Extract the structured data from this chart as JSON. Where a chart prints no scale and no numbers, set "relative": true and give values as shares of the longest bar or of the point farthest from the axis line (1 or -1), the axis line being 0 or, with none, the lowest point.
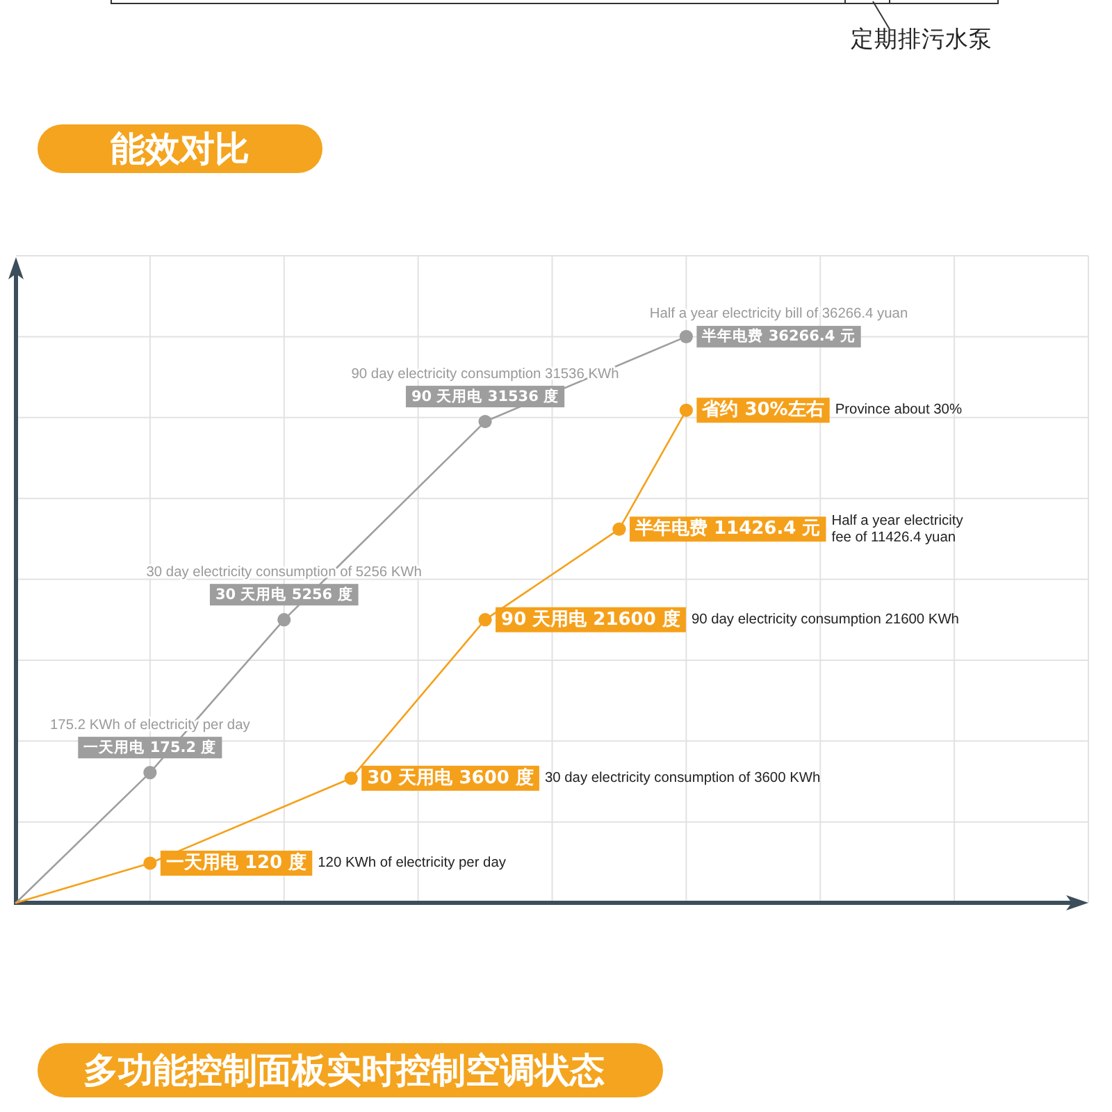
{
  "chart_data": {
    "type": "line",
    "title": "能效对比",
    "relative": true,
    "grid": true,
    "marker": "circle",
    "categories": [
      null,
      null,
      null,
      null,
      null,
      null,
      null,
      null,
      null,
      null,
      null
    ],
    "series": [
      {
        "color": "#9e9e9e",
        "values": [
          0,
          null,
          0.23,
          null,
          0.5,
          null,
          null,
          0.85,
          null,
          null,
          1
        ]
      },
      {
        "color": "#f5a01a",
        "values": [
          0,
          null,
          0.07,
          null,
          null,
          0.22,
          null,
          0.5,
          null,
          0.66,
          0.87
        ]
      }
    ],
    "annotations": [
      "一天用电 175.2 度",
      "175.2 KWh of electricity per day",
      "30 天用电 5256 度",
      "30 day electricity consumption of 5256 KWh",
      "90 天用电 31536 度",
      "90 day electricity consumption 31536 KWh",
      "半年电费 36266.4 元",
      "Half a year electricity bill of 36266.4 yuan",
      "一天用电 120 度",
      "120 KWh of electricity per day",
      "30 天用电 3600 度",
      "30 day electricity consumption of 3600 KWh",
      "90 天用电 21600 度",
      "90 day electricity consumption 21600 KWh",
      "半年电费 11426.4 元",
      "Half a year electricity fee of 11426.4 yuan",
      "省约 30%左右",
      "Province about 30%",
      "定期排污水泵",
      "多功能控制面板实时控制空调状态"
    ]
  }
}
